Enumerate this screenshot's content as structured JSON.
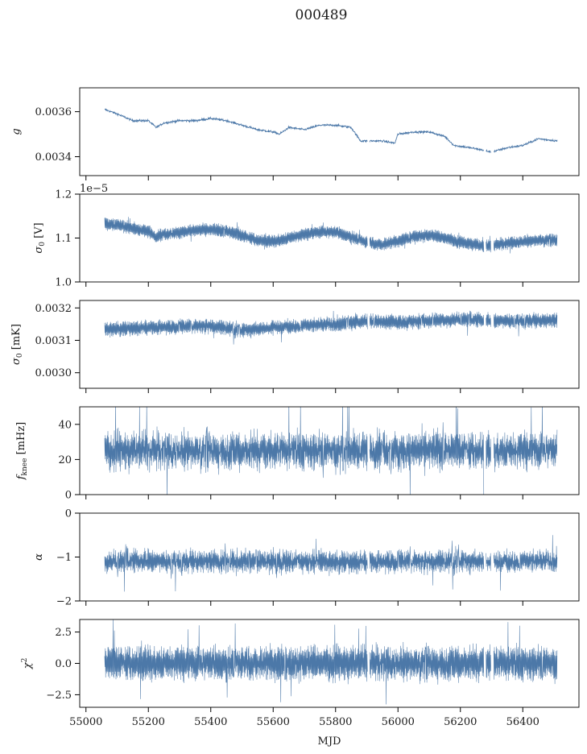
{
  "figure": {
    "title": "000489",
    "xlabel": "MJD",
    "series_color": "#4c78a8"
  },
  "chart_data": [
    {
      "type": "line",
      "id": "gain",
      "ylabel": "g",
      "ylabel_math": "g",
      "xlim": [
        54980,
        56580
      ],
      "ylim": [
        0.003316,
        0.003706
      ],
      "xticks": [
        55000,
        55200,
        55400,
        55600,
        55800,
        56000,
        56200,
        56400
      ],
      "yticks": [
        0.0034,
        0.0036
      ],
      "ytick_labels": [
        "0.0034",
        "0.0036"
      ],
      "x": [
        55060,
        55100,
        55150,
        55200,
        55225,
        55250,
        55300,
        55350,
        55400,
        55450,
        55500,
        55550,
        55600,
        55620,
        55650,
        55700,
        55750,
        55800,
        55850,
        55880,
        55950,
        55990,
        56000,
        56050,
        56100,
        56150,
        56180,
        56230,
        56270,
        56300,
        56350,
        56400,
        56450,
        56510
      ],
      "y": [
        0.00361,
        0.00359,
        0.00356,
        0.00356,
        0.00353,
        0.00355,
        0.00356,
        0.00356,
        0.00357,
        0.00356,
        0.00354,
        0.00352,
        0.00351,
        0.0035,
        0.00353,
        0.00352,
        0.00354,
        0.00354,
        0.00353,
        0.00347,
        0.00347,
        0.00346,
        0.0035,
        0.00351,
        0.00351,
        0.00349,
        0.00345,
        0.00344,
        0.00343,
        0.00342,
        0.00344,
        0.00345,
        0.00348,
        0.00347
      ],
      "noise": 4.5e-06,
      "band": false
    },
    {
      "type": "line",
      "id": "sigma0_volt",
      "ylabel": "σ0 [V]",
      "ylabel_math": "sigma0_V",
      "offset_text": "1e−5",
      "xlim": [
        54980,
        56580
      ],
      "ylim": [
        1.0,
        1.2
      ],
      "xticks": [
        55000,
        55200,
        55400,
        55600,
        55800,
        56000,
        56200,
        56400
      ],
      "yticks": [
        1.0,
        1.1,
        1.2
      ],
      "ytick_labels": [
        "1.0",
        "1.1",
        "1.2"
      ],
      "x": [
        55060,
        55100,
        55150,
        55200,
        55225,
        55250,
        55300,
        55350,
        55400,
        55450,
        55500,
        55550,
        55600,
        55650,
        55700,
        55750,
        55800,
        55850,
        55900,
        55950,
        56000,
        56050,
        56100,
        56150,
        56200,
        56250,
        56280,
        56300,
        56350,
        56400,
        56450,
        56510
      ],
      "y": [
        1.133,
        1.13,
        1.122,
        1.115,
        1.103,
        1.108,
        1.113,
        1.118,
        1.119,
        1.115,
        1.105,
        1.095,
        1.092,
        1.1,
        1.108,
        1.114,
        1.113,
        1.103,
        1.09,
        1.085,
        1.093,
        1.104,
        1.106,
        1.1,
        1.09,
        1.085,
        1.08,
        1.083,
        1.088,
        1.092,
        1.095,
        1.095
      ],
      "spread": 0.012,
      "noise": 0.005,
      "band": true
    },
    {
      "type": "line",
      "id": "sigma0_mk",
      "ylabel": "σ0 [mK]",
      "ylabel_math": "sigma0_mK",
      "xlim": [
        54980,
        56580
      ],
      "ylim": [
        0.002952,
        0.003223
      ],
      "xticks": [
        55000,
        55200,
        55400,
        55600,
        55800,
        56000,
        56200,
        56400
      ],
      "yticks": [
        0.003,
        0.0031,
        0.0032
      ],
      "ytick_labels": [
        "0.0030",
        "0.0031",
        "0.0032"
      ],
      "x": [
        55060,
        55200,
        55400,
        55500,
        55600,
        55800,
        55900,
        56000,
        56100,
        56200,
        56300,
        56400,
        56510
      ],
      "y": [
        0.003135,
        0.00314,
        0.003145,
        0.00313,
        0.00314,
        0.00315,
        0.00316,
        0.003155,
        0.00316,
        0.003165,
        0.00316,
        0.00316,
        0.003162
      ],
      "spread": 1.8e-05,
      "noise": 1.2e-05,
      "band": true
    },
    {
      "type": "line",
      "id": "fknee",
      "ylabel": "fknee [mHz]",
      "ylabel_math": "fknee",
      "xlim": [
        54980,
        56580
      ],
      "ylim": [
        0,
        50
      ],
      "xticks": [
        55000,
        55200,
        55400,
        55600,
        55800,
        56000,
        56200,
        56400
      ],
      "yticks": [
        0,
        20,
        40
      ],
      "ytick_labels": [
        "0",
        "20",
        "40"
      ],
      "x": [
        55060,
        56510
      ],
      "y": [
        25,
        25
      ],
      "spread": 7,
      "noise": 9,
      "band": true
    },
    {
      "type": "line",
      "id": "alpha",
      "ylabel": "α",
      "ylabel_math": "alpha",
      "xlim": [
        54980,
        56580
      ],
      "ylim": [
        -2,
        0
      ],
      "xticks": [
        55000,
        55200,
        55400,
        55600,
        55800,
        56000,
        56200,
        56400
      ],
      "yticks": [
        -2,
        -1,
        0
      ],
      "ytick_labels": [
        "−2",
        "−1",
        "0"
      ],
      "x": [
        55060,
        56510
      ],
      "y": [
        -1.1,
        -1.1
      ],
      "spread": 0.18,
      "noise": 0.2,
      "band": true
    },
    {
      "type": "line",
      "id": "chi2",
      "ylabel": "χ2",
      "ylabel_math": "chi2",
      "xlim": [
        54980,
        56580
      ],
      "ylim": [
        -3.5,
        3.5
      ],
      "xticks": [
        55000,
        55200,
        55400,
        55600,
        55800,
        56000,
        56200,
        56400
      ],
      "xtick_labels": [
        "55000",
        "55200",
        "55400",
        "55600",
        "55800",
        "56000",
        "56200",
        "56400"
      ],
      "yticks": [
        -2.5,
        0,
        2.5
      ],
      "ytick_labels": [
        "−2.5",
        "0.0",
        "2.5"
      ],
      "x": [
        55060,
        56510
      ],
      "y": [
        0.0,
        0.0
      ],
      "spread": 1.0,
      "noise": 0.9,
      "band": true
    }
  ]
}
